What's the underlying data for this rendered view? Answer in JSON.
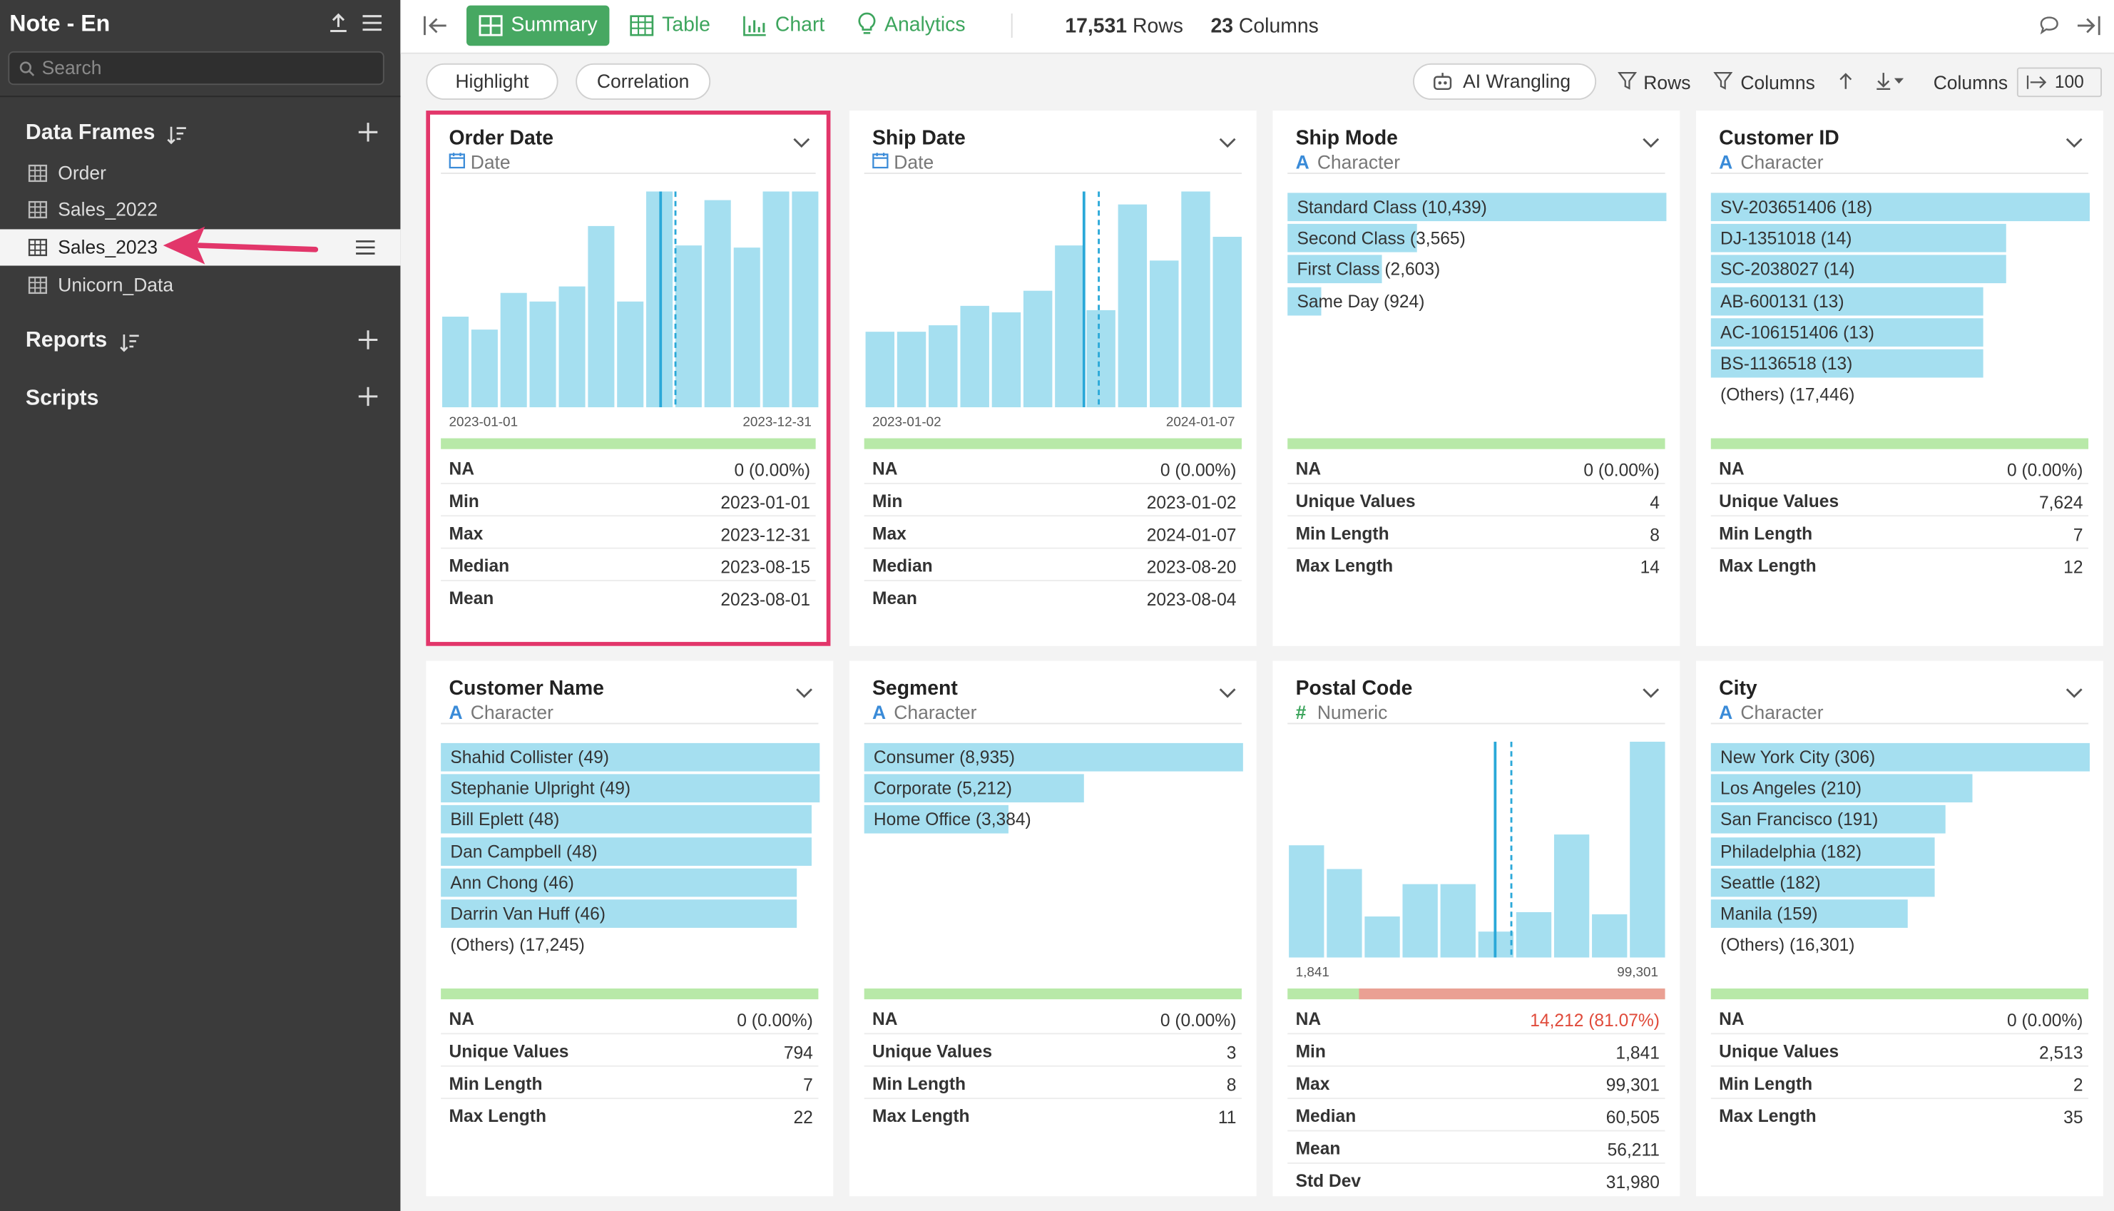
{
  "app": {
    "title": "Note - En",
    "search_placeholder": "Search"
  },
  "sidebar": {
    "data_frames_label": "Data Frames",
    "frames": [
      "Order",
      "Sales_2022",
      "Sales_2023",
      "Unicorn_Data"
    ],
    "selected_frame": "Sales_2023",
    "reports_label": "Reports",
    "scripts_label": "Scripts"
  },
  "toolbar": {
    "tabs": [
      "Summary",
      "Table",
      "Chart",
      "Analytics"
    ],
    "active_tab": "Summary",
    "rows": "17,531",
    "rows_label": "Rows",
    "columns": "23",
    "columns_label": "Columns"
  },
  "subbar": {
    "highlight": "Highlight",
    "correlation": "Correlation",
    "ai_wrangling": "AI Wrangling",
    "rows": "Rows",
    "columns": "Columns",
    "columns_label": "Columns",
    "page_size": "100"
  },
  "colors": {
    "accent": "#47a862",
    "bar": "#a5dff0",
    "highlight_border": "#e2366a",
    "na_bad": "#eaa093",
    "quality_ok": "#b8e9a8"
  },
  "cards": {
    "order_date": {
      "name": "Order Date",
      "type": "Date",
      "axis_min": "2023-01-01",
      "axis_max": "2023-12-31",
      "hist": [
        0.42,
        0.36,
        0.53,
        0.49,
        0.56,
        0.84,
        0.49,
        1.0,
        0.75,
        0.96,
        0.74,
        1.0,
        1.0
      ],
      "stats": [
        [
          "NA",
          "0 (0.00%)"
        ],
        [
          "Min",
          "2023-01-01"
        ],
        [
          "Max",
          "2023-12-31"
        ],
        [
          "Median",
          "2023-08-15"
        ],
        [
          "Mean",
          "2023-08-01"
        ]
      ]
    },
    "ship_date": {
      "name": "Ship Date",
      "type": "Date",
      "axis_min": "2023-01-02",
      "axis_max": "2024-01-07",
      "hist": [
        0.35,
        0.35,
        0.38,
        0.47,
        0.44,
        0.54,
        0.75,
        0.45,
        0.94,
        0.68,
        1.0,
        0.79
      ],
      "stats": [
        [
          "NA",
          "0 (0.00%)"
        ],
        [
          "Min",
          "2023-01-02"
        ],
        [
          "Max",
          "2024-01-07"
        ],
        [
          "Median",
          "2023-08-20"
        ],
        [
          "Mean",
          "2023-08-04"
        ]
      ]
    },
    "ship_mode": {
      "name": "Ship Mode",
      "type": "Character",
      "cats": [
        [
          "Standard Class (10,439)",
          1.0
        ],
        [
          "Second Class (3,565)",
          0.34
        ],
        [
          "First Class (2,603)",
          0.25
        ],
        [
          "Same Day (924)",
          0.09
        ]
      ],
      "stats": [
        [
          "NA",
          "0 (0.00%)"
        ],
        [
          "Unique Values",
          "4"
        ],
        [
          "Min Length",
          "8"
        ],
        [
          "Max Length",
          "14"
        ]
      ]
    },
    "customer_id": {
      "name": "Customer ID",
      "type": "Character",
      "cats": [
        [
          "SV-203651406 (18)",
          1.0
        ],
        [
          "DJ-1351018 (14)",
          0.78
        ],
        [
          "SC-2038027 (14)",
          0.78
        ],
        [
          "AB-600131 (13)",
          0.72
        ],
        [
          "AC-106151406 (13)",
          0.72
        ],
        [
          "BS-1136518 (13)",
          0.72
        ]
      ],
      "others": "(Others) (17,446)",
      "stats": [
        [
          "NA",
          "0 (0.00%)"
        ],
        [
          "Unique Values",
          "7,624"
        ],
        [
          "Min Length",
          "7"
        ],
        [
          "Max Length",
          "12"
        ]
      ]
    },
    "customer_name": {
      "name": "Customer Name",
      "type": "Character",
      "cats": [
        [
          "Shahid Collister (49)",
          1.0
        ],
        [
          "Stephanie Ulpright (49)",
          1.0
        ],
        [
          "Bill Eplett (48)",
          0.98
        ],
        [
          "Dan Campbell (48)",
          0.98
        ],
        [
          "Ann Chong (46)",
          0.94
        ],
        [
          "Darrin Van Huff (46)",
          0.94
        ]
      ],
      "others": "(Others) (17,245)",
      "stats": [
        [
          "NA",
          "0 (0.00%)"
        ],
        [
          "Unique Values",
          "794"
        ],
        [
          "Min Length",
          "7"
        ],
        [
          "Max Length",
          "22"
        ]
      ]
    },
    "segment": {
      "name": "Segment",
      "type": "Character",
      "cats": [
        [
          "Consumer (8,935)",
          1.0
        ],
        [
          "Corporate (5,212)",
          0.58
        ],
        [
          "Home Office (3,384)",
          0.38
        ]
      ],
      "stats": [
        [
          "NA",
          "0 (0.00%)"
        ],
        [
          "Unique Values",
          "3"
        ],
        [
          "Min Length",
          "8"
        ],
        [
          "Max Length",
          "11"
        ]
      ]
    },
    "postal_code": {
      "name": "Postal Code",
      "type": "Numeric",
      "axis_min": "1,841",
      "axis_max": "99,301",
      "hist": [
        0.52,
        0.41,
        0.19,
        0.34,
        0.34,
        0.12,
        0.21,
        0.57,
        0.2,
        1.0
      ],
      "na_bad": 0.81,
      "stats": [
        [
          "NA",
          "14,212 (81.07%)"
        ],
        [
          "Min",
          "1,841"
        ],
        [
          "Max",
          "99,301"
        ],
        [
          "Median",
          "60,505"
        ],
        [
          "Mean",
          "56,211"
        ],
        [
          "Std Dev",
          "31,980"
        ]
      ]
    },
    "city": {
      "name": "City",
      "type": "Character",
      "cats": [
        [
          "New York City (306)",
          1.0
        ],
        [
          "Los Angeles (210)",
          0.69
        ],
        [
          "San Francisco (191)",
          0.62
        ],
        [
          "Philadelphia (182)",
          0.59
        ],
        [
          "Seattle (182)",
          0.59
        ],
        [
          "Manila (159)",
          0.52
        ]
      ],
      "others": "(Others) (16,301)",
      "stats": [
        [
          "NA",
          "0 (0.00%)"
        ],
        [
          "Unique Values",
          "2,513"
        ],
        [
          "Min Length",
          "2"
        ],
        [
          "Max Length",
          "35"
        ]
      ]
    }
  }
}
